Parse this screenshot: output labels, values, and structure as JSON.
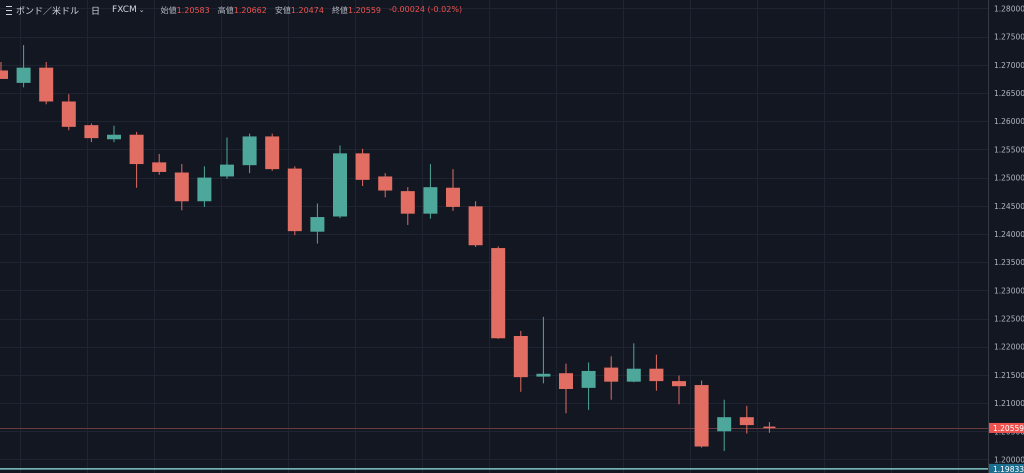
{
  "header": {
    "symbol": "ポンド／米ドル",
    "timeframe": "日",
    "source": "FXCM",
    "open_label": "始値",
    "open_value": "1.20583",
    "high_label": "高値",
    "high_value": "1.20662",
    "low_label": "安値",
    "low_value": "1.20474",
    "close_label": "終値",
    "close_value": "1.20559",
    "change": "-0.00024 (-0.02%)"
  },
  "colors": {
    "background": "#131722",
    "grid": "#1f2433",
    "up": "#26a69a",
    "down": "#ef5350",
    "up_candle": "#4ea79b",
    "down_candle": "#e26d62",
    "axis_text": "#b2b5be",
    "last_price_bg": "#ef5350",
    "marker_line": "#7fc8c8"
  },
  "chart_data": {
    "type": "candlestick",
    "ylim": [
      1.1976,
      1.2815
    ],
    "yticks": [
      "1.28000",
      "1.27500",
      "1.27000",
      "1.26500",
      "1.26000",
      "1.25500",
      "1.25000",
      "1.24500",
      "1.24000",
      "1.23500",
      "1.23000",
      "1.22500",
      "1.22000",
      "1.21500",
      "1.21000",
      "1.20500",
      "1.20000"
    ],
    "last_price": "1.20559",
    "marker_price": "1.19833",
    "candles": [
      {
        "o": 1.269,
        "h": 1.2705,
        "l": 1.2675,
        "c": 1.2675
      },
      {
        "o": 1.2668,
        "h": 1.2735,
        "l": 1.266,
        "c": 1.2695
      },
      {
        "o": 1.2695,
        "h": 1.2705,
        "l": 1.263,
        "c": 1.2635
      },
      {
        "o": 1.2635,
        "h": 1.2648,
        "l": 1.2584,
        "c": 1.259
      },
      {
        "o": 1.2593,
        "h": 1.2596,
        "l": 1.2563,
        "c": 1.257
      },
      {
        "o": 1.2568,
        "h": 1.2592,
        "l": 1.2563,
        "c": 1.2576
      },
      {
        "o": 1.2576,
        "h": 1.2581,
        "l": 1.2482,
        "c": 1.2524
      },
      {
        "o": 1.2527,
        "h": 1.2542,
        "l": 1.2505,
        "c": 1.251
      },
      {
        "o": 1.2509,
        "h": 1.2524,
        "l": 1.2442,
        "c": 1.2458
      },
      {
        "o": 1.2458,
        "h": 1.252,
        "l": 1.2448,
        "c": 1.25
      },
      {
        "o": 1.2502,
        "h": 1.2571,
        "l": 1.2498,
        "c": 1.2523
      },
      {
        "o": 1.2522,
        "h": 1.2578,
        "l": 1.2508,
        "c": 1.2573
      },
      {
        "o": 1.2573,
        "h": 1.2578,
        "l": 1.2512,
        "c": 1.2515
      },
      {
        "o": 1.2516,
        "h": 1.252,
        "l": 1.2398,
        "c": 1.2405
      },
      {
        "o": 1.2404,
        "h": 1.2454,
        "l": 1.2383,
        "c": 1.243
      },
      {
        "o": 1.2431,
        "h": 1.2557,
        "l": 1.2428,
        "c": 1.2543
      },
      {
        "o": 1.2543,
        "h": 1.2551,
        "l": 1.2485,
        "c": 1.2496
      },
      {
        "o": 1.2502,
        "h": 1.2508,
        "l": 1.2465,
        "c": 1.2477
      },
      {
        "o": 1.2476,
        "h": 1.2483,
        "l": 1.2416,
        "c": 1.2436
      },
      {
        "o": 1.2436,
        "h": 1.2524,
        "l": 1.2427,
        "c": 1.2483
      },
      {
        "o": 1.2482,
        "h": 1.2515,
        "l": 1.2441,
        "c": 1.2448
      },
      {
        "o": 1.2449,
        "h": 1.2458,
        "l": 1.2377,
        "c": 1.238
      },
      {
        "o": 1.2375,
        "h": 1.2378,
        "l": 1.2214,
        "c": 1.2215
      },
      {
        "o": 1.2219,
        "h": 1.2228,
        "l": 1.212,
        "c": 1.2146
      },
      {
        "o": 1.2147,
        "h": 1.2253,
        "l": 1.2135,
        "c": 1.2152
      },
      {
        "o": 1.2153,
        "h": 1.217,
        "l": 1.2082,
        "c": 1.2125
      },
      {
        "o": 1.2127,
        "h": 1.2172,
        "l": 1.2088,
        "c": 1.2157
      },
      {
        "o": 1.2163,
        "h": 1.2183,
        "l": 1.2106,
        "c": 1.2138
      },
      {
        "o": 1.2138,
        "h": 1.2206,
        "l": 1.2137,
        "c": 1.2161
      },
      {
        "o": 1.2161,
        "h": 1.2186,
        "l": 1.2122,
        "c": 1.2139
      },
      {
        "o": 1.2139,
        "h": 1.2149,
        "l": 1.2098,
        "c": 1.213
      },
      {
        "o": 1.2132,
        "h": 1.214,
        "l": 1.2021,
        "c": 1.2023
      },
      {
        "o": 1.205,
        "h": 1.2106,
        "l": 1.2015,
        "c": 1.2075
      },
      {
        "o": 1.2075,
        "h": 1.2095,
        "l": 1.2046,
        "c": 1.2061
      },
      {
        "o": 1.20583,
        "h": 1.20662,
        "l": 1.20474,
        "c": 1.20559
      }
    ]
  }
}
